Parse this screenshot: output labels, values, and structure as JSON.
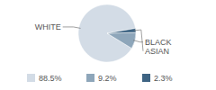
{
  "chart_data": {
    "type": "pie",
    "categories": [
      "WHITE",
      "BLACK",
      "ASIAN"
    ],
    "values": [
      88.5,
      9.2,
      2.3
    ],
    "value_labels": [
      "88.5%",
      "9.2%",
      "2.3%"
    ],
    "colors": [
      "#d3dce6",
      "#8ea6ba",
      "#3e6483"
    ],
    "data_labels": true,
    "legend": "bottom"
  }
}
